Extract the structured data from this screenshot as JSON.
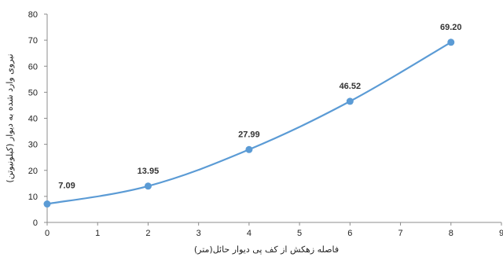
{
  "chart_data": {
    "type": "line",
    "title": "",
    "xlabel": "فاصله زهکش از کف پی دیوار حائل(متر)",
    "ylabel": "نیروی وارد شده به دیوار (کیلونیوتن)",
    "x": [
      0,
      2,
      4,
      6,
      8
    ],
    "series": [
      {
        "values": [
          7.09,
          13.95,
          27.99,
          46.52,
          69.2
        ],
        "color": "#5b9bd5"
      }
    ],
    "data_labels": [
      "7.09",
      "13.95",
      "27.99",
      "46.52",
      "69.20"
    ],
    "xlim": [
      0,
      9
    ],
    "ylim": [
      0,
      80
    ],
    "xticks": [
      "0",
      "1",
      "2",
      "3",
      "4",
      "5",
      "6",
      "7",
      "8",
      "9"
    ],
    "yticks": [
      "0",
      "10",
      "20",
      "30",
      "40",
      "50",
      "60",
      "70",
      "80"
    ],
    "grid": false,
    "smooth": true,
    "legend": "none"
  }
}
